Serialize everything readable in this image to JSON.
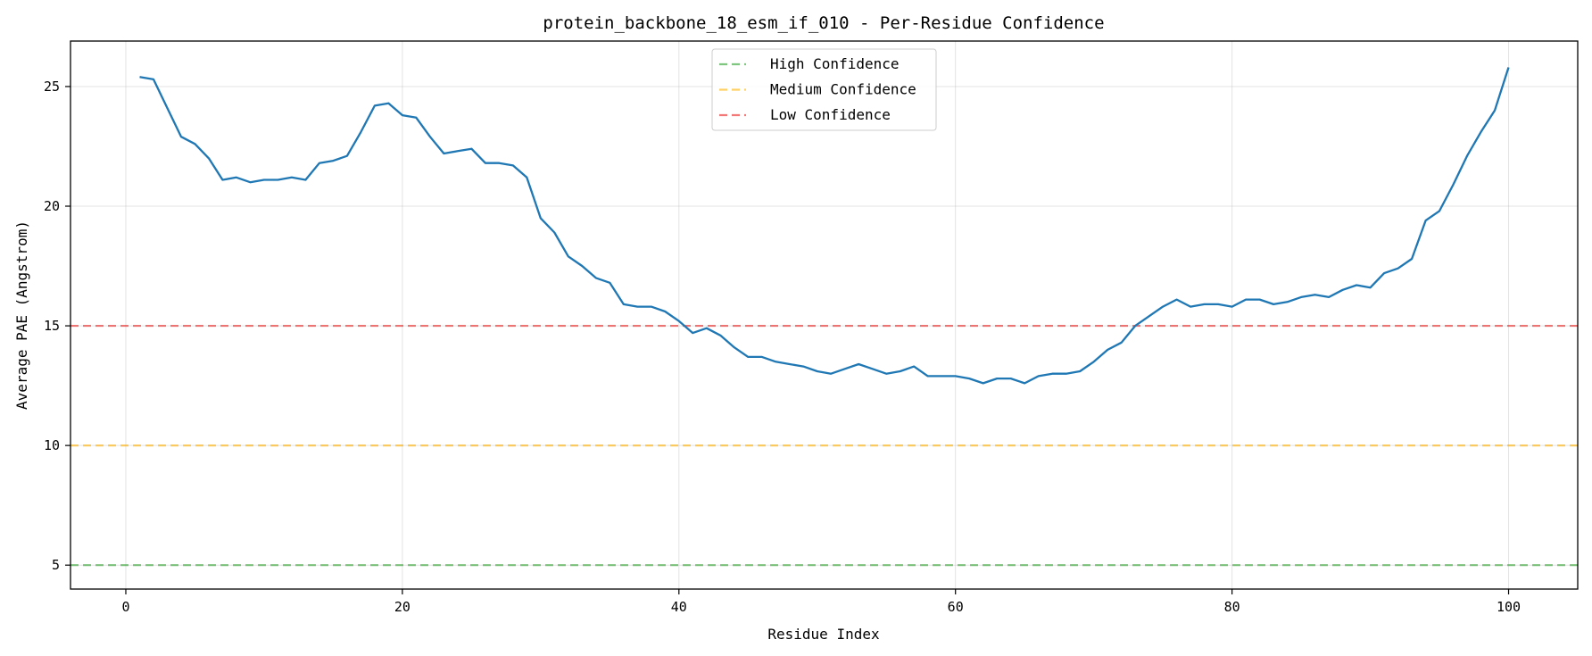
{
  "chart_data": {
    "type": "line",
    "title": "protein_backbone_18_esm_if_010 - Per-Residue Confidence",
    "xlabel": "Residue Index",
    "ylabel": "Average PAE (Angstrom)",
    "xlim": [
      -4,
      105
    ],
    "ylim": [
      4,
      26.9
    ],
    "xticks": [
      0,
      20,
      40,
      60,
      80,
      100
    ],
    "yticks": [
      5,
      10,
      15,
      20,
      25
    ],
    "grid": true,
    "legend_position": "top-center",
    "series": [
      {
        "color": "#1f77b4",
        "x": [
          1,
          2,
          3,
          4,
          5,
          6,
          7,
          8,
          9,
          10,
          11,
          12,
          13,
          14,
          15,
          16,
          17,
          18,
          19,
          20,
          21,
          22,
          23,
          24,
          25,
          26,
          27,
          28,
          29,
          30,
          31,
          32,
          33,
          34,
          35,
          36,
          37,
          38,
          39,
          40,
          41,
          42,
          43,
          44,
          45,
          46,
          47,
          48,
          49,
          50,
          51,
          52,
          53,
          54,
          55,
          56,
          57,
          58,
          59,
          60,
          61,
          62,
          63,
          64,
          65,
          66,
          67,
          68,
          69,
          70,
          71,
          72,
          73,
          74,
          75,
          76,
          77,
          78,
          79,
          80,
          81,
          82,
          83,
          84,
          85,
          86,
          87,
          88,
          89,
          90,
          91,
          92,
          93,
          94,
          95,
          96,
          97,
          98,
          99,
          100
        ],
        "y": [
          25.4,
          25.3,
          24.1,
          22.9,
          22.6,
          22.0,
          21.1,
          21.2,
          21.0,
          21.1,
          21.1,
          21.2,
          21.1,
          21.8,
          21.9,
          22.1,
          23.1,
          24.2,
          24.3,
          23.8,
          23.7,
          22.9,
          22.2,
          22.3,
          22.4,
          21.8,
          21.8,
          21.7,
          21.2,
          19.5,
          18.9,
          17.9,
          17.5,
          17.0,
          16.8,
          15.9,
          15.8,
          15.8,
          15.6,
          15.2,
          14.7,
          14.9,
          14.6,
          14.1,
          13.7,
          13.7,
          13.5,
          13.4,
          13.3,
          13.1,
          13.0,
          13.2,
          13.4,
          13.2,
          13.0,
          13.1,
          13.3,
          12.9,
          12.9,
          12.9,
          12.8,
          12.6,
          12.8,
          12.8,
          12.6,
          12.9,
          13.0,
          13.0,
          13.1,
          13.5,
          14.0,
          14.3,
          15.0,
          15.4,
          15.8,
          16.1,
          15.8,
          15.9,
          15.9,
          15.8,
          16.1,
          16.1,
          15.9,
          16.0,
          16.2,
          16.3,
          16.2,
          16.5,
          16.7,
          16.6,
          17.2,
          17.4,
          17.8,
          19.4,
          19.8,
          20.9,
          22.1,
          23.1,
          24.0,
          25.8
        ]
      }
    ],
    "reference_lines": [
      {
        "name": "High Confidence",
        "y": 5,
        "color": "#2ca02c"
      },
      {
        "name": "Medium Confidence",
        "y": 10,
        "color": "#ffb000"
      },
      {
        "name": "Low Confidence",
        "y": 15,
        "color": "#e8201c"
      }
    ]
  }
}
